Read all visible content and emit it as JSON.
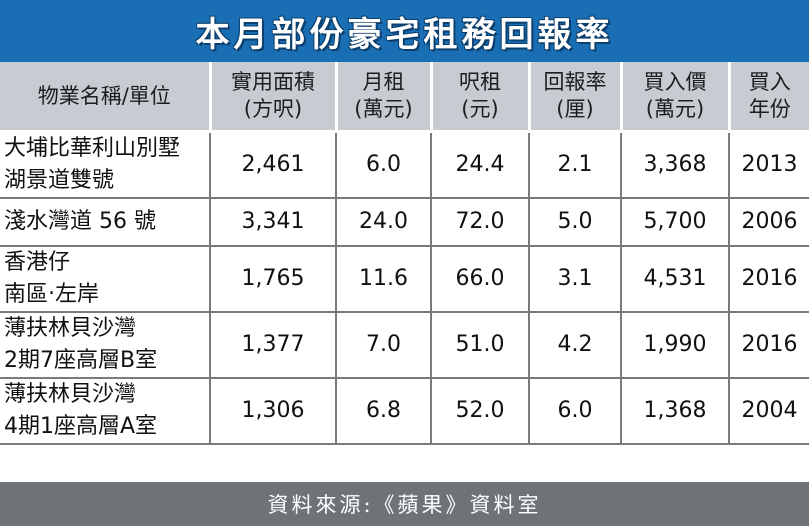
{
  "chart_data": {
    "type": "table",
    "title": "本月部份豪宅租務回報率",
    "headers": [
      [
        "物業名稱/單位"
      ],
      [
        "實用面積",
        "(方呎)"
      ],
      [
        "月租",
        "(萬元)"
      ],
      [
        "呎租",
        "(元)"
      ],
      [
        "回報率",
        "(厘)"
      ],
      [
        "買入價",
        "(萬元)"
      ],
      [
        "買入",
        "年份"
      ]
    ],
    "rows": [
      {
        "name": [
          "大埔比華利山別墅",
          "湖景道雙號"
        ],
        "area": "2,461",
        "rent": "6.0",
        "rent_per_sqft": "24.4",
        "yield": "2.1",
        "price": "3,368",
        "year": "2013"
      },
      {
        "name": [
          "淺水灣道 56 號"
        ],
        "area": "3,341",
        "rent": "24.0",
        "rent_per_sqft": "72.0",
        "yield": "5.0",
        "price": "5,700",
        "year": "2006"
      },
      {
        "name": [
          "香港仔",
          "南區‧左岸"
        ],
        "area": "1,765",
        "rent": "11.6",
        "rent_per_sqft": "66.0",
        "yield": "3.1",
        "price": "4,531",
        "year": "2016"
      },
      {
        "name": [
          "薄扶林貝沙灣",
          "2期7座高層B室"
        ],
        "area": "1,377",
        "rent": "7.0",
        "rent_per_sqft": "51.0",
        "yield": "4.2",
        "price": "1,990",
        "year": "2016"
      },
      {
        "name": [
          "薄扶林貝沙灣",
          "4期1座高層A室"
        ],
        "area": "1,306",
        "rent": "6.8",
        "rent_per_sqft": "52.0",
        "yield": "6.0",
        "price": "1,368",
        "year": "2004"
      }
    ],
    "source": "資料來源:《蘋果》資料室"
  },
  "colors": {
    "title_bg": "#1a6fb4",
    "header_bg": "#c6ccd2",
    "footer_bg": "#6e7378"
  }
}
